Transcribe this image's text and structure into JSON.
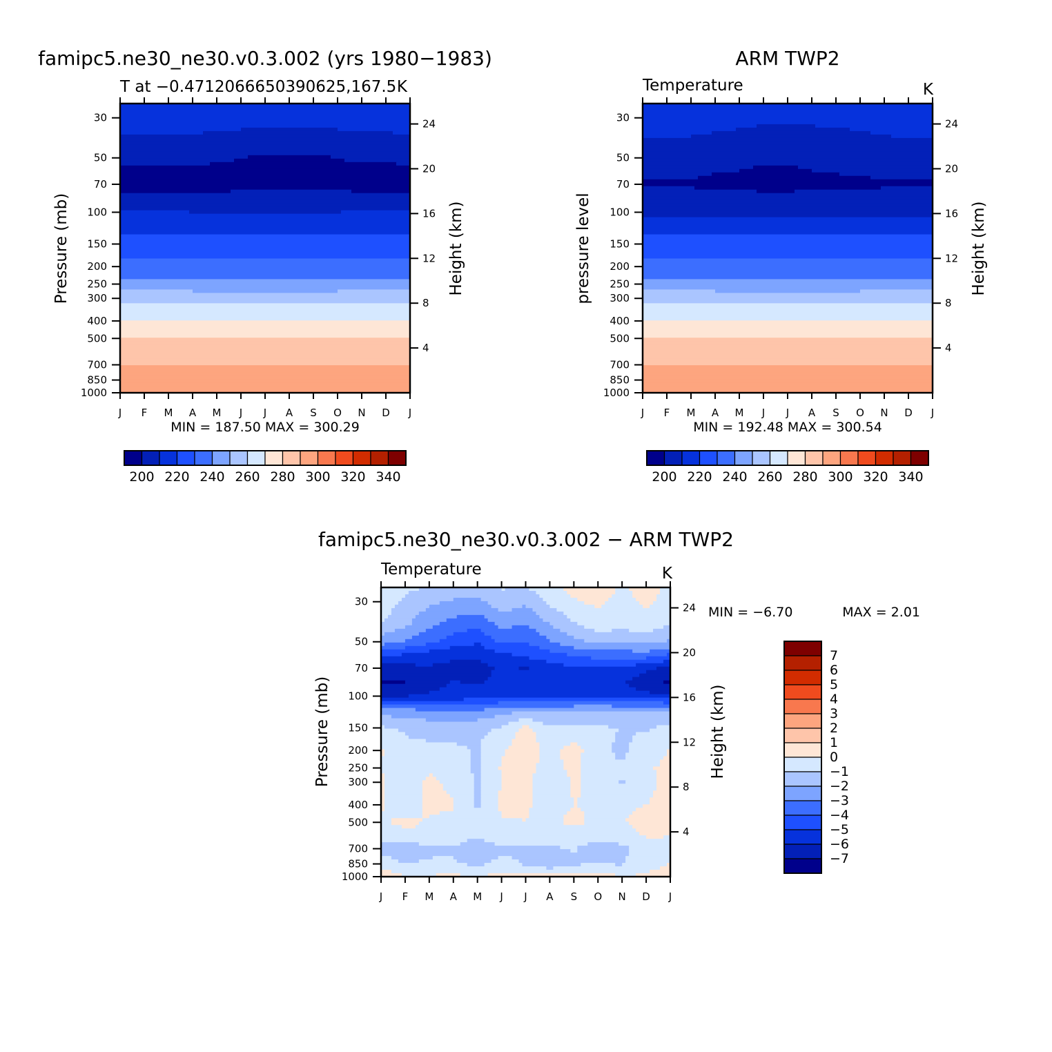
{
  "months": [
    "J",
    "F",
    "M",
    "A",
    "M",
    "J",
    "J",
    "A",
    "S",
    "O",
    "N",
    "D",
    "J"
  ],
  "pressure_ticks": [
    30,
    50,
    70,
    100,
    150,
    200,
    250,
    300,
    400,
    500,
    700,
    850,
    1000
  ],
  "height_ticks": [
    24,
    20,
    16,
    12,
    8,
    4
  ],
  "temperature_palette": [
    "#00008b",
    "#0320b8",
    "#0632dc",
    "#1e50ff",
    "#3c6eff",
    "#7da4ff",
    "#aac5ff",
    "#d5e8ff",
    "#fee6d6",
    "#fec5aa",
    "#fda57f",
    "#f8784e",
    "#f04b1e",
    "#d22c00",
    "#b42000",
    "#7e0000"
  ],
  "temperature_colorbar_labels": [
    "200",
    "220",
    "240",
    "260",
    "280",
    "300",
    "320",
    "340"
  ],
  "difference_palette": [
    "#00008b",
    "#0320b8",
    "#0632dc",
    "#1e50ff",
    "#3c6eff",
    "#7da4ff",
    "#aac5ff",
    "#d5e8ff",
    "#fee6d6",
    "#fec5aa",
    "#fda57f",
    "#f8784e",
    "#f04b1e",
    "#d22c00",
    "#b42000",
    "#7e0000"
  ],
  "difference_colorbar_labels": [
    "7",
    "6",
    "5",
    "4",
    "3",
    "2",
    "1",
    "0",
    "−1",
    "−2",
    "−3",
    "−4",
    "−5",
    "−6",
    "−7"
  ],
  "chart_data": [
    {
      "type": "heatmap",
      "title": "famipc5.ne30_ne30.v0.3.002 (yrs 1980−1983)",
      "subtitle": "T at −0.4712066650390625,167.5",
      "units": "K",
      "ylabel": "Pressure (mb)",
      "y2label": "Height (km)",
      "stats": "MIN = 187.50 MAX = 300.29",
      "contour_levels": [
        195,
        205,
        215,
        225,
        235,
        245,
        255,
        265,
        275,
        285
      ],
      "y_pressure_levels": [
        25,
        30,
        50,
        70,
        100,
        150,
        200,
        250,
        300,
        400,
        500,
        700,
        850,
        1000
      ],
      "x_months": [
        0,
        1,
        2,
        3,
        4,
        5,
        6,
        7,
        8,
        9,
        10,
        11,
        12
      ],
      "values": [
        [
          213,
          213,
          213,
          212,
          212,
          211,
          211,
          211,
          211,
          211,
          212,
          212,
          213
        ],
        [
          211,
          211,
          211,
          210,
          210,
          209,
          209,
          208,
          209,
          209,
          210,
          210,
          211
        ],
        [
          197,
          197,
          197,
          197,
          196,
          195,
          194,
          194,
          194,
          195,
          196,
          196,
          197
        ],
        [
          190,
          190,
          190,
          190,
          191,
          192,
          193,
          193,
          193,
          192,
          191,
          190,
          190
        ],
        [
          206,
          206,
          206,
          205,
          205,
          205,
          205,
          205,
          205,
          205,
          206,
          206,
          206
        ],
        [
          220,
          220,
          220,
          219,
          219,
          219,
          219,
          219,
          219,
          219,
          220,
          220,
          220
        ],
        [
          228,
          228,
          228,
          228,
          228,
          228,
          228,
          228,
          228,
          228,
          228,
          228,
          228
        ],
        [
          238,
          238,
          238,
          237,
          237,
          237,
          237,
          237,
          237,
          237,
          238,
          238,
          238
        ],
        [
          253,
          253,
          253,
          253,
          253,
          253,
          253,
          253,
          253,
          253,
          253,
          253,
          253
        ],
        [
          265,
          265,
          265,
          265,
          265,
          265,
          265,
          265,
          265,
          265,
          265,
          265,
          265
        ],
        [
          276,
          276,
          276,
          276,
          276,
          276,
          276,
          276,
          276,
          276,
          276,
          276,
          276
        ],
        [
          285,
          285,
          285,
          285,
          285,
          285,
          285,
          285,
          285,
          285,
          285,
          285,
          285
        ],
        [
          293,
          293,
          293,
          293,
          293,
          293,
          293,
          293,
          293,
          293,
          293,
          293,
          293
        ],
        [
          300,
          300,
          300,
          300,
          300,
          300,
          300,
          300,
          300,
          300,
          300,
          300,
          300
        ]
      ]
    },
    {
      "type": "heatmap",
      "title": "ARM TWP2",
      "subtitle": "Temperature",
      "units": "K",
      "ylabel": "pressure level",
      "y2label": "Height (km)",
      "stats": "MIN = 192.48 MAX = 300.54",
      "contour_levels": [
        195,
        205,
        215,
        225,
        235,
        245,
        255,
        265,
        275,
        285
      ],
      "y_pressure_levels": [
        25,
        30,
        50,
        70,
        100,
        150,
        200,
        250,
        300,
        400,
        500,
        700,
        850,
        1000
      ],
      "x_months": [
        0,
        1,
        2,
        3,
        4,
        5,
        6,
        7,
        8,
        9,
        10,
        11,
        12
      ],
      "values": [
        [
          213,
          213,
          213,
          212,
          212,
          211,
          211,
          211,
          211,
          211,
          212,
          212,
          213
        ],
        [
          211,
          211,
          210,
          209,
          208,
          207,
          207,
          207,
          207,
          208,
          209,
          210,
          211
        ],
        [
          200,
          200,
          199,
          198,
          197,
          196,
          196,
          197,
          198,
          199,
          200,
          200,
          200
        ],
        [
          194,
          194,
          194,
          193,
          193,
          192,
          192,
          193,
          193,
          193,
          194,
          194,
          194
        ],
        [
          203,
          203,
          203,
          203,
          203,
          203,
          203,
          203,
          203,
          203,
          203,
          203,
          203
        ],
        [
          220,
          220,
          220,
          219,
          219,
          219,
          219,
          219,
          219,
          219,
          220,
          220,
          220
        ],
        [
          228,
          228,
          228,
          228,
          228,
          228,
          228,
          228,
          228,
          228,
          228,
          228,
          228
        ],
        [
          238,
          238,
          238,
          237,
          237,
          237,
          237,
          237,
          237,
          237,
          238,
          238,
          238
        ],
        [
          253,
          253,
          253,
          253,
          253,
          253,
          253,
          253,
          253,
          253,
          253,
          253,
          253
        ],
        [
          265,
          265,
          265,
          265,
          265,
          265,
          265,
          265,
          265,
          265,
          265,
          265,
          265
        ],
        [
          276,
          276,
          276,
          276,
          276,
          276,
          276,
          276,
          276,
          276,
          276,
          276,
          276
        ],
        [
          285,
          285,
          285,
          285,
          285,
          285,
          285,
          285,
          285,
          285,
          285,
          285,
          285
        ],
        [
          294,
          294,
          294,
          294,
          294,
          294,
          294,
          294,
          294,
          294,
          294,
          294,
          294
        ],
        [
          300,
          300,
          300,
          300,
          300,
          300,
          300,
          300,
          300,
          300,
          300,
          300,
          300
        ]
      ]
    },
    {
      "type": "heatmap",
      "title": "famipc5.ne30_ne30.v0.3.002 − ARM TWP2",
      "subtitle": "Temperature",
      "units": "K",
      "ylabel": "Pressure (mb)",
      "y2label": "Height (km)",
      "stats_min_label": "MIN = −6.70",
      "stats_max_label": "MAX = 2.01",
      "contour_levels": [
        -6.5,
        -5.5,
        -4.5,
        -3.5,
        -2.5,
        -1.5,
        -0.5,
        0.5
      ],
      "y_pressure_levels": [
        25,
        30,
        40,
        50,
        60,
        70,
        85,
        100,
        120,
        150,
        200,
        250,
        300,
        400,
        500,
        600,
        700,
        850,
        1000
      ],
      "x_months": [
        0,
        1,
        2,
        3,
        4,
        5,
        6,
        7,
        8,
        9,
        10,
        11,
        12
      ],
      "values": [
        [
          0.3,
          -0.2,
          -0.6,
          -0.9,
          -1.0,
          -0.4,
          -0.6,
          0.3,
          0.8,
          1.2,
          0.3,
          1.1,
          0.2
        ],
        [
          0.3,
          -0.8,
          -1.3,
          -1.6,
          -1.8,
          -0.9,
          -1.3,
          -0.3,
          0.4,
          0.7,
          0.1,
          0.7,
          0.1
        ],
        [
          -0.6,
          -1.3,
          -2.2,
          -2.9,
          -3.2,
          -2.2,
          -2.5,
          -1.5,
          -0.6,
          0.1,
          -0.2,
          0.2,
          -0.5
        ],
        [
          -2.0,
          -2.6,
          -3.3,
          -4.0,
          -4.4,
          -3.3,
          -3.5,
          -2.6,
          -1.8,
          -1.3,
          -1.3,
          -1.2,
          -1.6
        ],
        [
          -4.5,
          -4.8,
          -5.1,
          -5.3,
          -5.4,
          -4.8,
          -4.4,
          -4.0,
          -3.5,
          -3.2,
          -3.2,
          -3.1,
          -3.8
        ],
        [
          -6.2,
          -5.8,
          -5.6,
          -5.8,
          -5.9,
          -5.3,
          -5.6,
          -4.9,
          -4.7,
          -4.5,
          -4.5,
          -5.3,
          -5.8
        ],
        [
          -6.6,
          -6.6,
          -6.0,
          -5.4,
          -5.6,
          -5.2,
          -5.0,
          -5.1,
          -5.1,
          -5.2,
          -5.4,
          -6.3,
          -6.7
        ],
        [
          -5.6,
          -5.5,
          -5.3,
          -5.1,
          -5.0,
          -4.8,
          -4.9,
          -4.8,
          -4.9,
          -5.0,
          -5.0,
          -5.1,
          -5.4
        ],
        [
          -1.8,
          -2.3,
          -2.4,
          -2.6,
          -2.5,
          -1.9,
          -1.7,
          -1.6,
          -1.5,
          -1.4,
          -1.5,
          -1.5,
          -1.4
        ],
        [
          -0.4,
          -0.6,
          -0.8,
          -0.9,
          -0.7,
          -0.4,
          0.9,
          -0.4,
          -0.2,
          -0.4,
          -0.5,
          -0.6,
          -0.2
        ],
        [
          0.6,
          -0.3,
          -0.3,
          -0.3,
          -0.6,
          0.4,
          1.0,
          0.2,
          0.9,
          -0.2,
          -0.7,
          -0.1,
          0.6
        ],
        [
          0.5,
          -0.3,
          0.3,
          -0.3,
          -0.6,
          0.6,
          0.8,
          0.1,
          0.8,
          -0.3,
          -0.4,
          0.4,
          0.7
        ],
        [
          0.7,
          -0.3,
          0.8,
          0.2,
          -0.6,
          0.5,
          0.7,
          -0.2,
          0.6,
          0.3,
          -0.6,
          0.4,
          0.6
        ],
        [
          0.6,
          0.1,
          0.7,
          0.6,
          -0.6,
          0.7,
          0.6,
          0.2,
          0.5,
          0.4,
          0.3,
          0.5,
          0.6
        ],
        [
          0.4,
          0.7,
          0.4,
          0.2,
          -0.5,
          0.4,
          0.5,
          0.3,
          0.7,
          0.3,
          0.4,
          1.0,
          0.8
        ],
        [
          -0.2,
          0.3,
          0.4,
          0.1,
          -0.4,
          0.3,
          0.2,
          0.2,
          -0.1,
          0.2,
          -0.3,
          0.6,
          0.5
        ],
        [
          -0.9,
          -1.4,
          -0.8,
          -0.6,
          -1.4,
          -0.7,
          -0.6,
          -0.7,
          -0.4,
          -1.2,
          -0.6,
          -0.4,
          -0.4
        ],
        [
          0.2,
          -0.5,
          -0.3,
          -0.4,
          -0.7,
          -0.2,
          -0.6,
          -1.2,
          -0.6,
          -0.5,
          -0.6,
          0.2,
          0.5
        ],
        [
          1.2,
          0.6,
          0.6,
          0.7,
          0.5,
          0.8,
          0.7,
          0.8,
          0.7,
          0.8,
          0.6,
          0.6,
          1.0
        ]
      ]
    }
  ]
}
